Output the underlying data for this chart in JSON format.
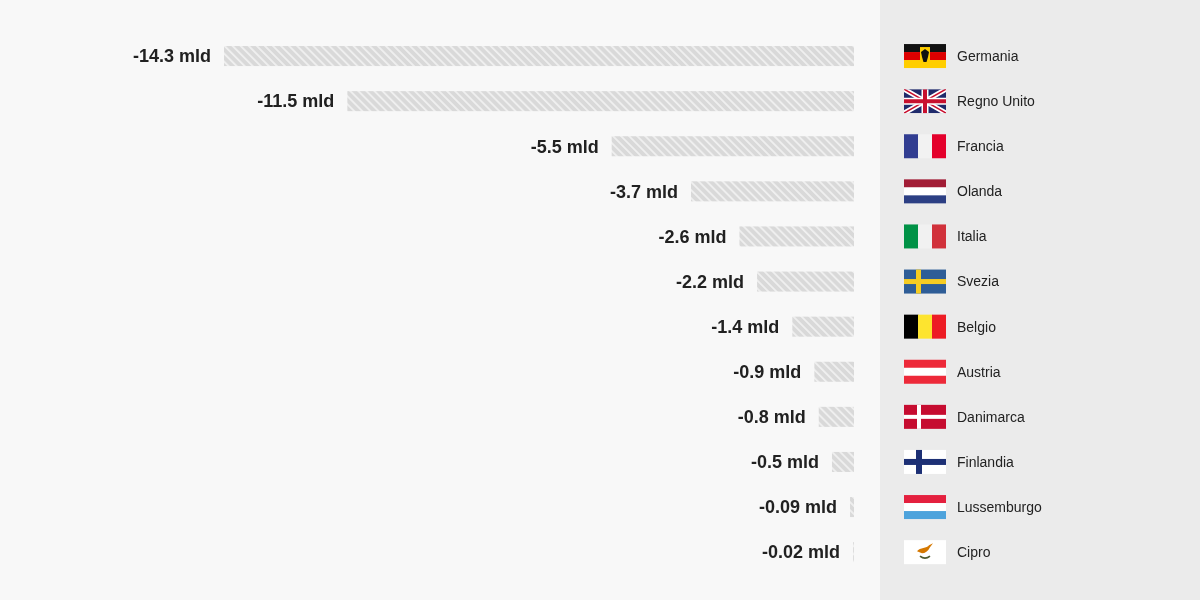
{
  "chart_data": {
    "type": "bar",
    "orientation": "horizontal",
    "categories": [
      "Germania",
      "Regno Unito",
      "Francia",
      "Olanda",
      "Italia",
      "Svezia",
      "Belgio",
      "Austria",
      "Danimarca",
      "Finlandia",
      "Lussemburgo",
      "Cipro"
    ],
    "values": [
      -14.3,
      -11.5,
      -5.5,
      -3.7,
      -2.6,
      -2.2,
      -1.4,
      -0.9,
      -0.8,
      -0.5,
      -0.09,
      -0.02
    ],
    "color": "#d9d9d9",
    "value_labels": [
      "-14.3 mld",
      "-11.5 mld",
      "-5.5 mld",
      "-3.7 mld",
      "-2.6 mld",
      "-2.2 mld",
      "-1.4 mld",
      "-0.9 mld",
      "-0.8 mld",
      "-0.5 mld",
      "-0.09 mld",
      "-0.02 mld"
    ]
  }
}
